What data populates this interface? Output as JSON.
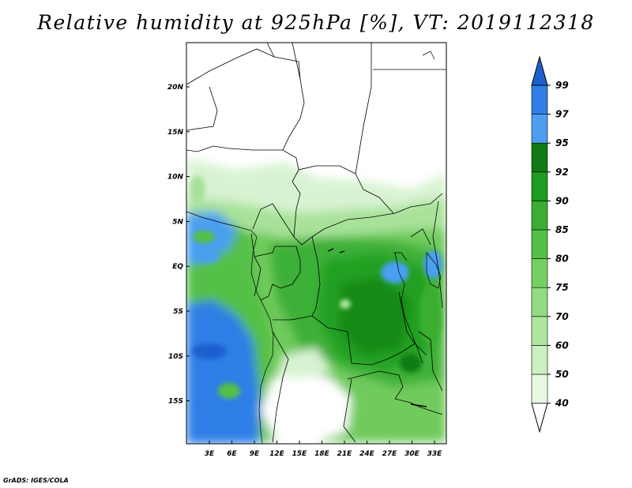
{
  "title": "Relative humidity at 925hPa [%], VT: 2019112318",
  "footer": "GrADS: IGES/COLA",
  "map": {
    "lon_range": [
      0,
      34
    ],
    "lat_range": [
      -20,
      25
    ],
    "lat_ticks": [
      "20N",
      "15N",
      "10N",
      "5N",
      "EQ",
      "5S",
      "10S",
      "15S"
    ],
    "lon_ticks": [
      "3E",
      "6E",
      "9E",
      "12E",
      "15E",
      "18E",
      "21E",
      "24E",
      "27E",
      "30E",
      "33E"
    ]
  },
  "colorbar": {
    "levels": [
      "40",
      "50",
      "60",
      "70",
      "75",
      "80",
      "85",
      "90",
      "92",
      "95",
      "97",
      "99"
    ],
    "colors": [
      "#ffffff",
      "#e6f8e2",
      "#c9f0c0",
      "#aee6a0",
      "#92db80",
      "#75cf62",
      "#55c046",
      "#3aae33",
      "#1e9b20",
      "#117a12",
      "#4a9ff0",
      "#2f7fe6",
      "#1f5fcf"
    ]
  }
}
